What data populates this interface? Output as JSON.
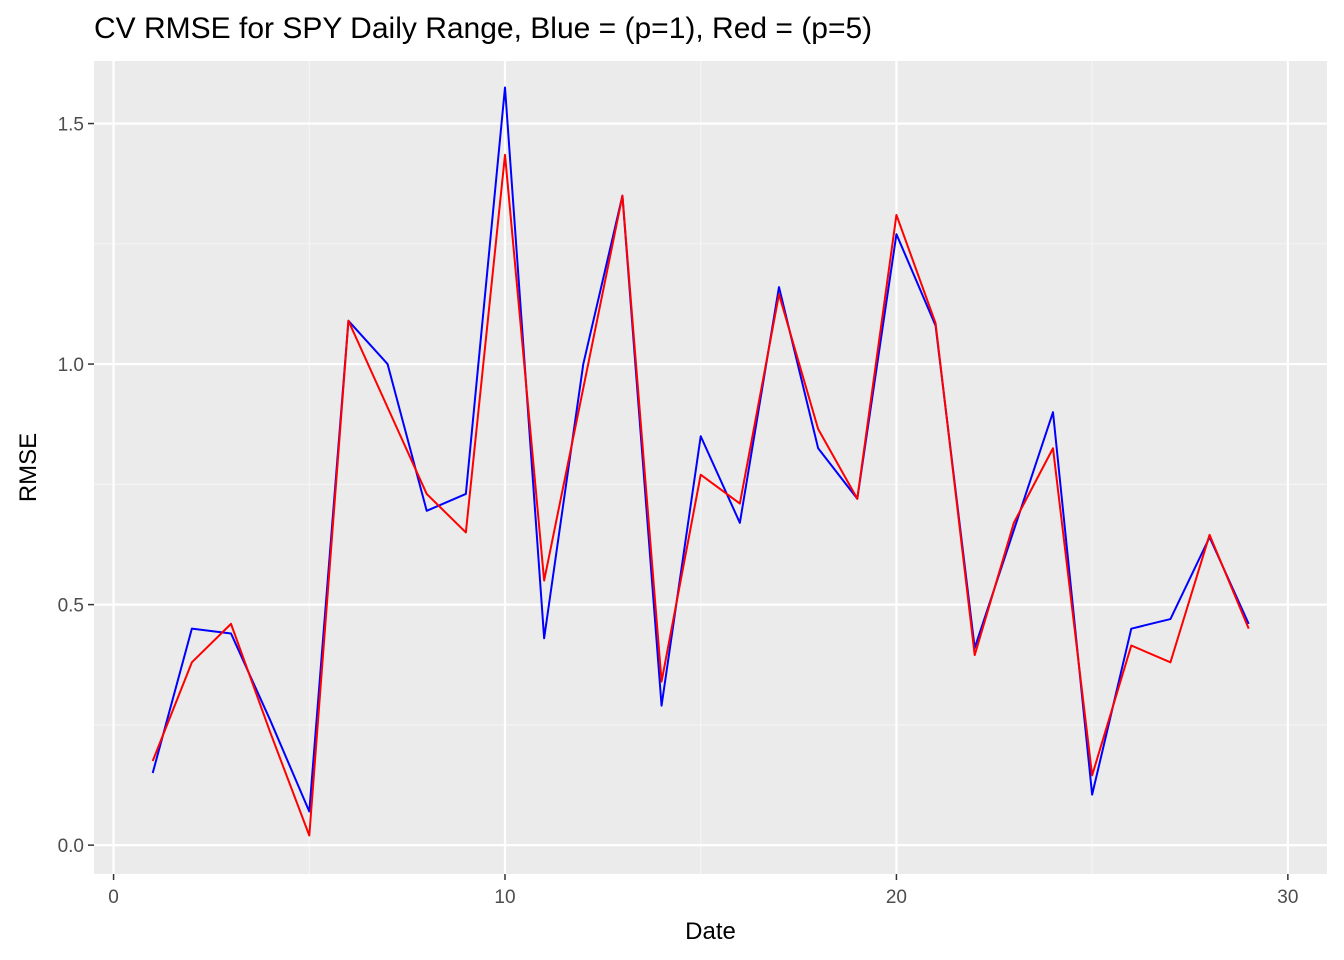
{
  "chart_data": {
    "type": "line",
    "title": "CV RMSE for SPY Daily Range, Blue = (p=1), Red = (p=5)",
    "xlabel": "Date",
    "ylabel": "RMSE",
    "xlim": [
      -0.5,
      31
    ],
    "ylim": [
      -0.06,
      1.63
    ],
    "x_ticks": [
      0,
      10,
      20,
      30
    ],
    "y_ticks": [
      0.0,
      0.5,
      1.0,
      1.5
    ],
    "x_tick_labels": [
      "0",
      "10",
      "20",
      "30"
    ],
    "y_tick_labels": [
      "0.0",
      "0.5",
      "1.0",
      "1.5"
    ],
    "grid": true,
    "legend": "none",
    "colors": {
      "panel_background": "#EBEBEB",
      "grid_major": "#FFFFFF",
      "grid_minor": "#F5F5F5",
      "tick_mark": "#333333",
      "tick_label": "#4D4D4D"
    },
    "x": [
      1,
      2,
      3,
      4,
      5,
      6,
      7,
      8,
      9,
      10,
      11,
      12,
      13,
      14,
      15,
      16,
      17,
      18,
      19,
      20,
      21,
      22,
      23,
      24,
      25,
      26,
      27,
      28,
      29
    ],
    "series": [
      {
        "color": "#0000FF",
        "values": [
          0.15,
          0.45,
          0.44,
          0.26,
          0.07,
          1.09,
          1.0,
          0.695,
          0.73,
          1.575,
          0.43,
          1.0,
          1.35,
          0.29,
          0.85,
          0.67,
          1.16,
          0.825,
          0.72,
          1.27,
          1.08,
          0.41,
          0.655,
          0.9,
          0.105,
          0.45,
          0.47,
          0.64,
          0.46
        ]
      },
      {
        "color": "#FF0000",
        "values": [
          0.175,
          0.38,
          0.46,
          0.235,
          0.02,
          1.09,
          0.91,
          0.73,
          0.65,
          1.435,
          0.55,
          0.95,
          1.35,
          0.34,
          0.77,
          0.71,
          1.145,
          0.865,
          0.72,
          1.31,
          1.085,
          0.395,
          0.67,
          0.825,
          0.145,
          0.415,
          0.38,
          0.645,
          0.45
        ]
      }
    ]
  }
}
